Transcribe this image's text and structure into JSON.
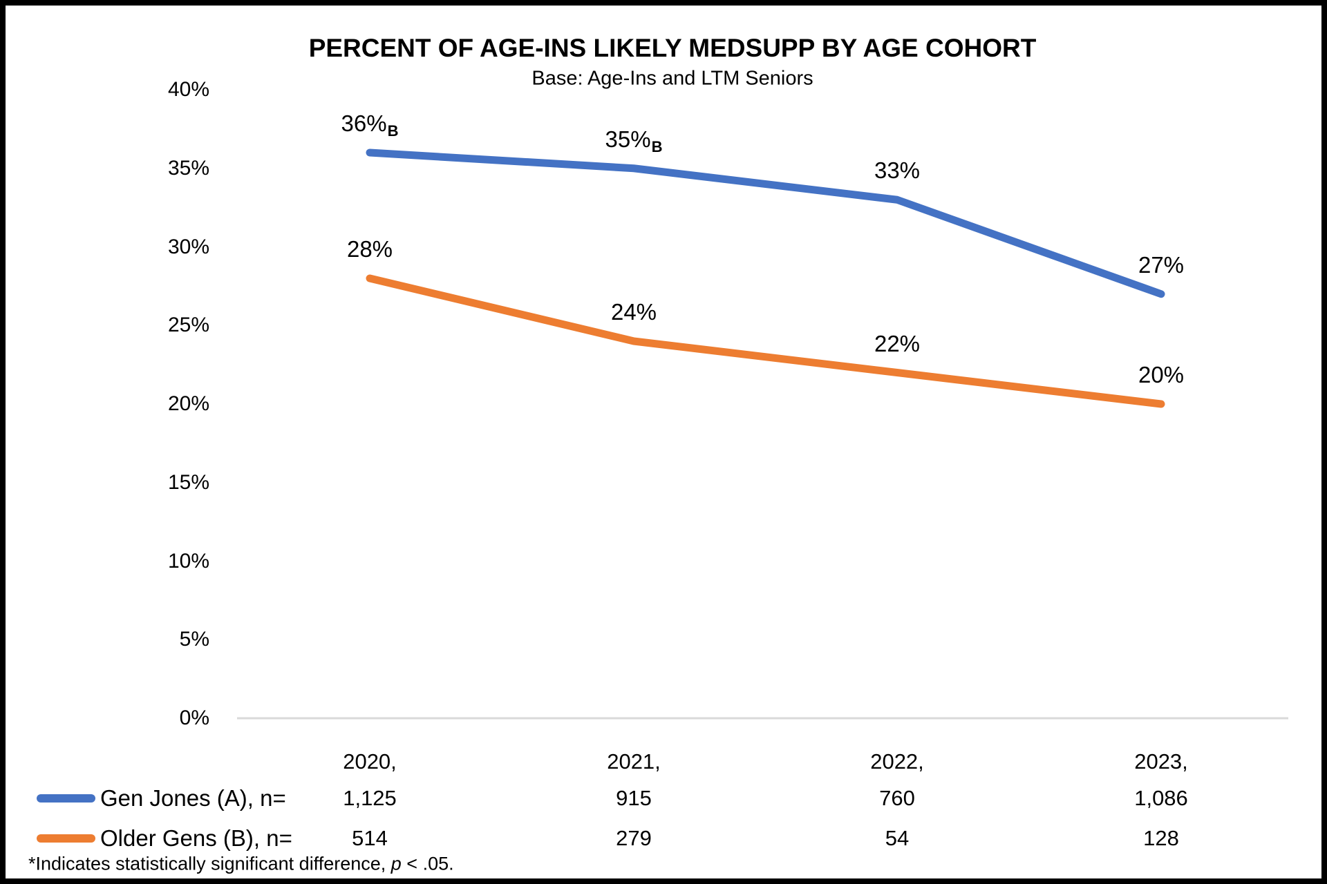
{
  "chart_data": {
    "type": "line",
    "title": "PERCENT OF AGE-INS LIKELY MEDSUPP BY AGE COHORT",
    "subtitle": "Base: Age-Ins and LTM Seniors",
    "categories": [
      "2020",
      "2021",
      "2022",
      "2023"
    ],
    "x_tick_labels": [
      "2020,",
      "2021,",
      "2022,",
      "2023,"
    ],
    "y_axis": {
      "min": 0,
      "max": 40,
      "step": 5,
      "tick_labels": [
        "0%",
        "5%",
        "10%",
        "15%",
        "20%",
        "25%",
        "30%",
        "35%",
        "40%"
      ]
    },
    "series": [
      {
        "name": "Gen Jones (A), n=",
        "color": "#4472C4",
        "values": [
          36,
          35,
          33,
          27
        ],
        "point_labels": [
          "36%",
          "35%",
          "33%",
          "27%"
        ],
        "point_label_subscripts": [
          "B",
          "B",
          "",
          ""
        ],
        "n_values": [
          "1,125",
          "915",
          "760",
          "1,086"
        ]
      },
      {
        "name": "Older Gens (B), n=",
        "color": "#ED7D31",
        "values": [
          28,
          24,
          22,
          20
        ],
        "point_labels": [
          "28%",
          "24%",
          "22%",
          "20%"
        ],
        "point_label_subscripts": [
          "",
          "",
          "",
          ""
        ],
        "n_values": [
          "514",
          "279",
          "54",
          "128"
        ]
      }
    ],
    "legend_position": "bottom-left",
    "gridlines": "baseline-only",
    "footnote": {
      "text_before_p": "*Indicates statistically significant difference, ",
      "p": "p",
      "text_after_p": " < .05."
    }
  },
  "colors": {
    "baseline_axis": "#D9D9D9",
    "text": "#000000",
    "frame_border": "#000000",
    "background": "#FFFFFF"
  }
}
